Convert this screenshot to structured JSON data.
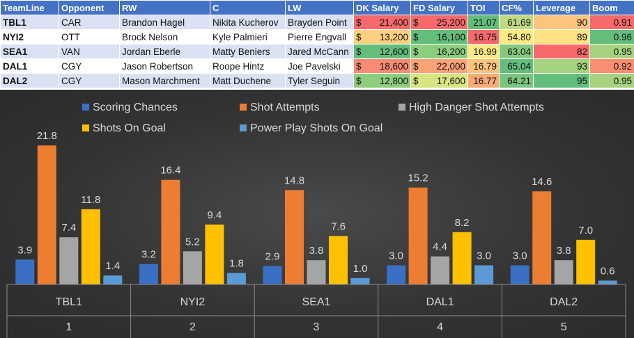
{
  "table": {
    "headers": [
      "TeamLine",
      "Opponent",
      "RW",
      "C",
      "LW",
      "DK Salary",
      "FD Salary",
      "TOI",
      "CF%",
      "Leverage",
      "Boom"
    ],
    "rows": [
      {
        "teamline": "TBL1",
        "opponent": "CAR",
        "rw": "Brandon Hagel",
        "c": "Nikita Kucherov",
        "lw": "Brayden Point",
        "dk": "21,400",
        "fd": "25,200",
        "toi": "21.07",
        "cf": "61.69",
        "leverage": "90",
        "boom": "0.91"
      },
      {
        "teamline": "NYI2",
        "opponent": "OTT",
        "rw": "Brock Nelson",
        "c": "Kyle Palmieri",
        "lw": "Pierre Engvall",
        "dk": "13,200",
        "fd": "16,100",
        "toi": "16.75",
        "cf": "54.80",
        "leverage": "89",
        "boom": "0.96"
      },
      {
        "teamline": "SEA1",
        "opponent": "VAN",
        "rw": "Jordan Eberle",
        "c": "Matty Beniers",
        "lw": "Jared McCann",
        "dk": "12,600",
        "fd": "16,200",
        "toi": "16.99",
        "cf": "63.04",
        "leverage": "82",
        "boom": "0.95"
      },
      {
        "teamline": "DAL1",
        "opponent": "CGY",
        "rw": "Jason Robertson",
        "c": "Roope Hintz",
        "lw": "Joe Pavelski",
        "dk": "18,600",
        "fd": "22,000",
        "toi": "16.79",
        "cf": "65.04",
        "leverage": "93",
        "boom": "0.92"
      },
      {
        "teamline": "DAL2",
        "opponent": "CGY",
        "rw": "Mason Marchment",
        "c": "Matt Duchene",
        "lw": "Tyler Seguin",
        "dk": "12,800",
        "fd": "17,600",
        "toi": "16.77",
        "cf": "64.21",
        "leverage": "95",
        "boom": "0.95"
      }
    ],
    "cell_colors": {
      "dk": [
        "#f8696b",
        "#fdd17f",
        "#63be7b",
        "#f98b74",
        "#8ccd7e"
      ],
      "fd": [
        "#f8696b",
        "#63be7b",
        "#8ccd7e",
        "#fba276",
        "#d8e381"
      ],
      "toi": [
        "#63be7b",
        "#f8696b",
        "#fee983",
        "#fdc37d",
        "#fbaa77"
      ],
      "cf": [
        "#c1da81",
        "#ffeb84",
        "#86c97e",
        "#63be7b",
        "#79c57d"
      ],
      "leverage": [
        "#fdc47d",
        "#ffe283",
        "#f8696b",
        "#a4d27f",
        "#63be7b"
      ],
      "boom": [
        "#f8696b",
        "#63be7b",
        "#a8d280",
        "#fa8e72",
        "#a8d280"
      ]
    },
    "currency_symbol": "$"
  },
  "chart_data": {
    "type": "bar",
    "categories": [
      "TBL1",
      "NYI2",
      "SEA1",
      "DAL1",
      "DAL2"
    ],
    "category_sub_labels": [
      "1",
      "2",
      "3",
      "4",
      "5"
    ],
    "series": [
      {
        "name": "Scoring Chances",
        "values": [
          3.9,
          3.2,
          2.9,
          3.0,
          3.0
        ],
        "color": "#3a6fc4"
      },
      {
        "name": "Shot Attempts",
        "values": [
          21.8,
          16.4,
          14.8,
          15.2,
          14.6
        ],
        "color": "#ed7d31"
      },
      {
        "name": "High Danger Shot Attempts",
        "values": [
          7.4,
          5.2,
          3.8,
          4.4,
          3.8
        ],
        "color": "#a5a5a5"
      },
      {
        "name": "Shots On Goal",
        "values": [
          11.8,
          9.4,
          7.6,
          8.2,
          7.0
        ],
        "color": "#ffc000"
      },
      {
        "name": "Power Play Shots On Goal",
        "values": [
          1.4,
          1.8,
          1.0,
          3.0,
          0.6
        ],
        "color": "#5b9bd5"
      }
    ],
    "value_label_format": "one_decimal",
    "ylim": [
      0,
      24
    ],
    "grid": false,
    "legend_position": "top",
    "title": "",
    "xlabel": "",
    "ylabel": ""
  }
}
